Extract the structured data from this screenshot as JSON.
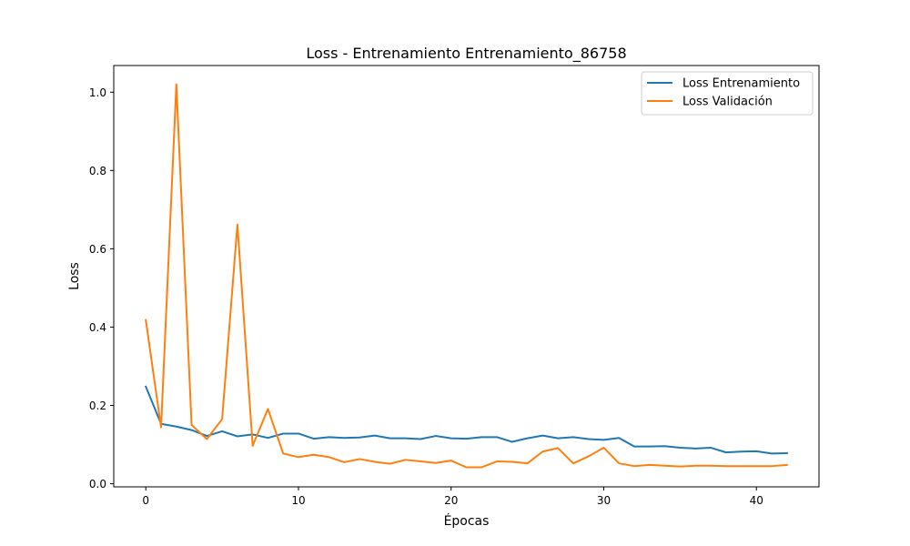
{
  "chart_data": {
    "type": "line",
    "title": "Loss - Entrenamiento Entrenamiento_86758",
    "xlabel": "Épocas",
    "ylabel": "Loss",
    "xlim": [
      -2.1,
      44.1
    ],
    "ylim": [
      -0.008,
      1.068
    ],
    "xticks": [
      0,
      10,
      20,
      30,
      40
    ],
    "yticks": [
      0.0,
      0.2,
      0.4,
      0.6,
      0.8,
      1.0
    ],
    "xtick_labels": [
      "0",
      "10",
      "20",
      "30",
      "40"
    ],
    "ytick_labels": [
      "0.0",
      "0.2",
      "0.4",
      "0.6",
      "0.8",
      "1.0"
    ],
    "grid": false,
    "legend_position": "top-right",
    "x": [
      0,
      1,
      2,
      3,
      4,
      5,
      6,
      7,
      8,
      9,
      10,
      11,
      12,
      13,
      14,
      15,
      16,
      17,
      18,
      19,
      20,
      21,
      22,
      23,
      24,
      25,
      26,
      27,
      28,
      29,
      30,
      31,
      32,
      33,
      34,
      35,
      36,
      37,
      38,
      39,
      40,
      41,
      42
    ],
    "series": [
      {
        "name": "Loss Entrenamiento",
        "color": "#1f77b4",
        "values": [
          0.248,
          0.153,
          0.146,
          0.137,
          0.122,
          0.134,
          0.121,
          0.126,
          0.117,
          0.128,
          0.128,
          0.115,
          0.119,
          0.117,
          0.118,
          0.123,
          0.116,
          0.116,
          0.114,
          0.122,
          0.116,
          0.115,
          0.119,
          0.119,
          0.107,
          0.116,
          0.123,
          0.116,
          0.119,
          0.114,
          0.112,
          0.117,
          0.095,
          0.095,
          0.096,
          0.092,
          0.09,
          0.092,
          0.08,
          0.082,
          0.083,
          0.077,
          0.078
        ]
      },
      {
        "name": "Loss Validación",
        "color": "#ff7f0e",
        "values": [
          0.418,
          0.144,
          1.02,
          0.15,
          0.114,
          0.165,
          0.662,
          0.097,
          0.191,
          0.077,
          0.068,
          0.074,
          0.068,
          0.055,
          0.063,
          0.056,
          0.051,
          0.061,
          0.057,
          0.053,
          0.059,
          0.042,
          0.042,
          0.057,
          0.056,
          0.052,
          0.082,
          0.091,
          0.052,
          0.07,
          0.092,
          0.052,
          0.045,
          0.048,
          0.046,
          0.044,
          0.046,
          0.046,
          0.045,
          0.045,
          0.045,
          0.045,
          0.048
        ]
      }
    ]
  }
}
